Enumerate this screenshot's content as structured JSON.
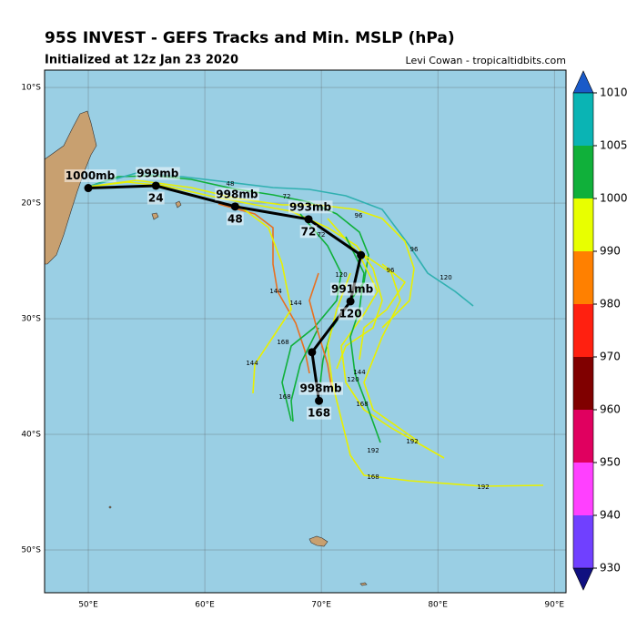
{
  "title": "95S INVEST - GEFS Tracks and Min. MSLP (hPa)",
  "subtitle": "Initialized at 12z Jan 23 2020",
  "credit": "Levi Cowan - tropicaltidbits.com",
  "map": {
    "lonlim": [
      46.25,
      91.0
    ],
    "latlim": [
      -8.5,
      -53.7
    ],
    "lon_ticks": [
      {
        "value": 50,
        "label": "50°E"
      },
      {
        "value": 60,
        "label": "60°E"
      },
      {
        "value": 70,
        "label": "70°E"
      },
      {
        "value": 80,
        "label": "80°E"
      },
      {
        "value": 90,
        "label": "90°E"
      }
    ],
    "lat_ticks": [
      {
        "value": -10,
        "label": "10°S"
      },
      {
        "value": -20,
        "label": "20°S"
      },
      {
        "value": -30,
        "label": "30°S"
      },
      {
        "value": -40,
        "label": "40°S"
      },
      {
        "value": -50,
        "label": "50°S"
      }
    ]
  },
  "mean_track": {
    "lon": [
      50.0,
      55.8,
      62.6,
      68.9,
      73.4,
      72.5,
      69.2,
      69.8
    ],
    "lat": [
      -18.7,
      -18.5,
      -20.3,
      -21.4,
      -24.5,
      -28.5,
      -32.9,
      -37.1
    ],
    "pressure_labels": [
      "1000mb",
      "999mb",
      "998mb",
      "993mb",
      null,
      "991mb",
      null,
      "998mb"
    ],
    "hour_labels": [
      null,
      "24",
      "48",
      "72",
      null,
      "120",
      null,
      "168"
    ]
  },
  "track_labels": [
    "48",
    "72",
    "72",
    "96",
    "96",
    "96",
    "120",
    "120",
    "144",
    "144",
    "144",
    "168",
    "168",
    "168",
    "192",
    "192",
    "192",
    "120",
    "144",
    "168"
  ],
  "colorbar": {
    "ticks": [
      {
        "value": 1010,
        "label": "1010"
      },
      {
        "value": 1005,
        "label": "1005"
      },
      {
        "value": 1000,
        "label": "1000"
      },
      {
        "value": 990,
        "label": "990"
      },
      {
        "value": 980,
        "label": "980"
      },
      {
        "value": 970,
        "label": "970"
      },
      {
        "value": 960,
        "label": "960"
      },
      {
        "value": 950,
        "label": "950"
      },
      {
        "value": 940,
        "label": "940"
      },
      {
        "value": 930,
        "label": "930"
      }
    ],
    "colors": [
      "#0ab4b4",
      "#10b03a",
      "#e8ff00",
      "#ff8000",
      "#ff2010",
      "#800000",
      "#e0005f",
      "#ff40ff",
      "#7040ff"
    ],
    "over_color": "#1a5ac8",
    "under_color": "#101080"
  }
}
